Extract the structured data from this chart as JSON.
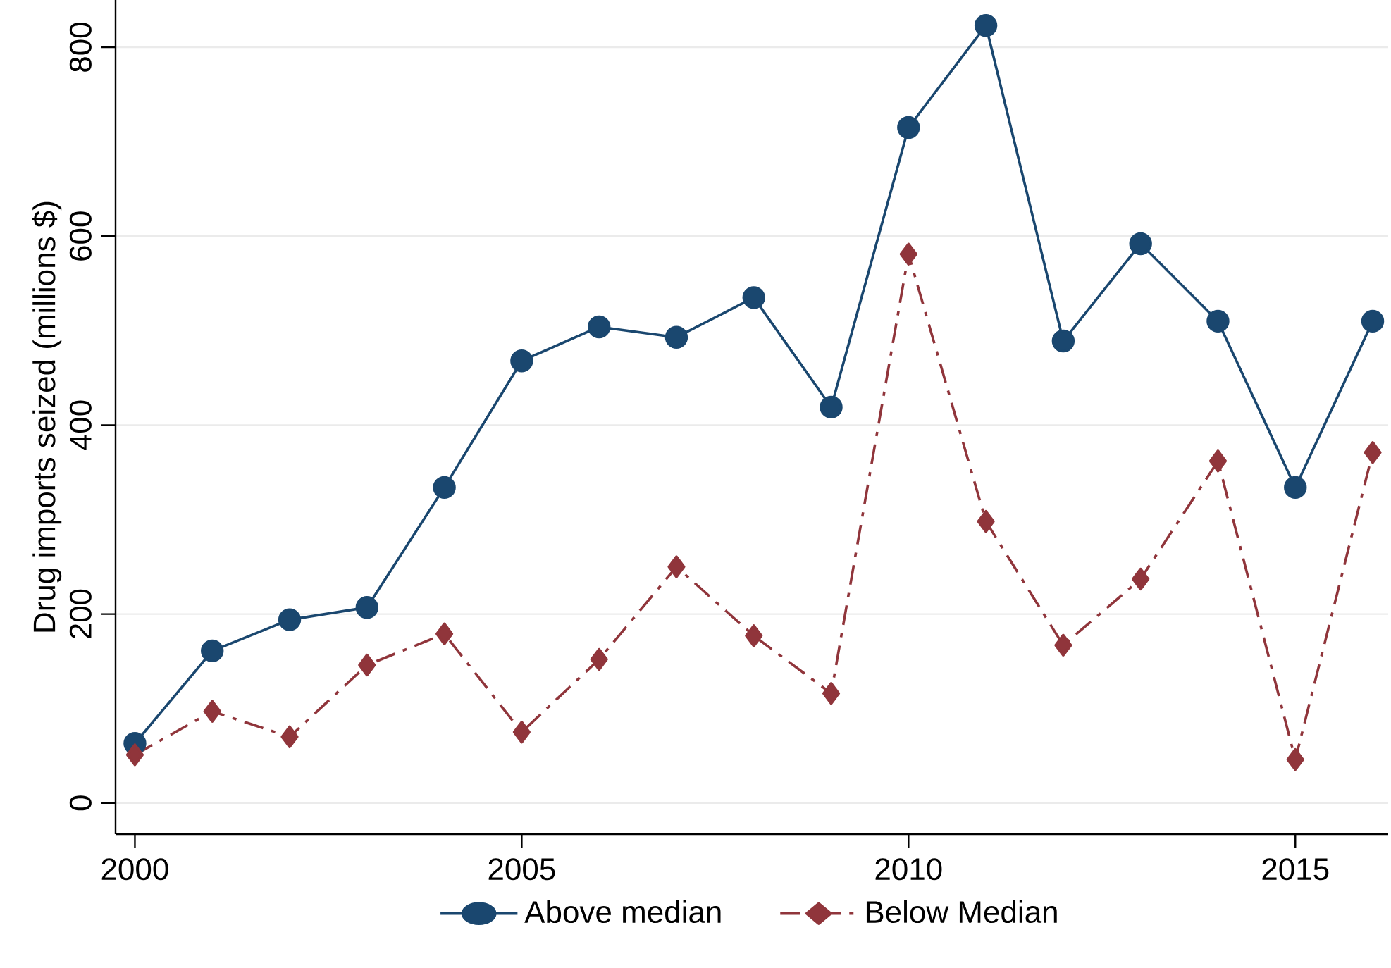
{
  "chart_data": {
    "type": "line",
    "ylabel": "Drug imports seized (millions $)",
    "x": [
      2000,
      2001,
      2002,
      2003,
      2004,
      2005,
      2006,
      2007,
      2008,
      2009,
      2010,
      2011,
      2012,
      2013,
      2014,
      2015,
      2016
    ],
    "series": [
      {
        "name": "Above median",
        "color": "#1a476f",
        "marker": "circle",
        "line_style": "solid",
        "values": [
          63,
          161,
          194,
          207,
          334,
          468,
          504,
          493,
          535,
          419,
          715,
          823,
          489,
          592,
          510,
          334,
          510
        ]
      },
      {
        "name": "Below Median",
        "color": "#90353b",
        "marker": "diamond",
        "line_style": "dashdot",
        "values": [
          51,
          97,
          70,
          146,
          179,
          75,
          152,
          250,
          177,
          116,
          581,
          298,
          167,
          237,
          362,
          46,
          371
        ]
      }
    ],
    "xlim": [
      1999.75,
      2016.2
    ],
    "ylim": [
      -33,
      850
    ],
    "xticks": [
      2000,
      2005,
      2010,
      2015
    ],
    "yticks": [
      0,
      200,
      400,
      600,
      800
    ],
    "grid": "y",
    "legend": "bottom"
  }
}
